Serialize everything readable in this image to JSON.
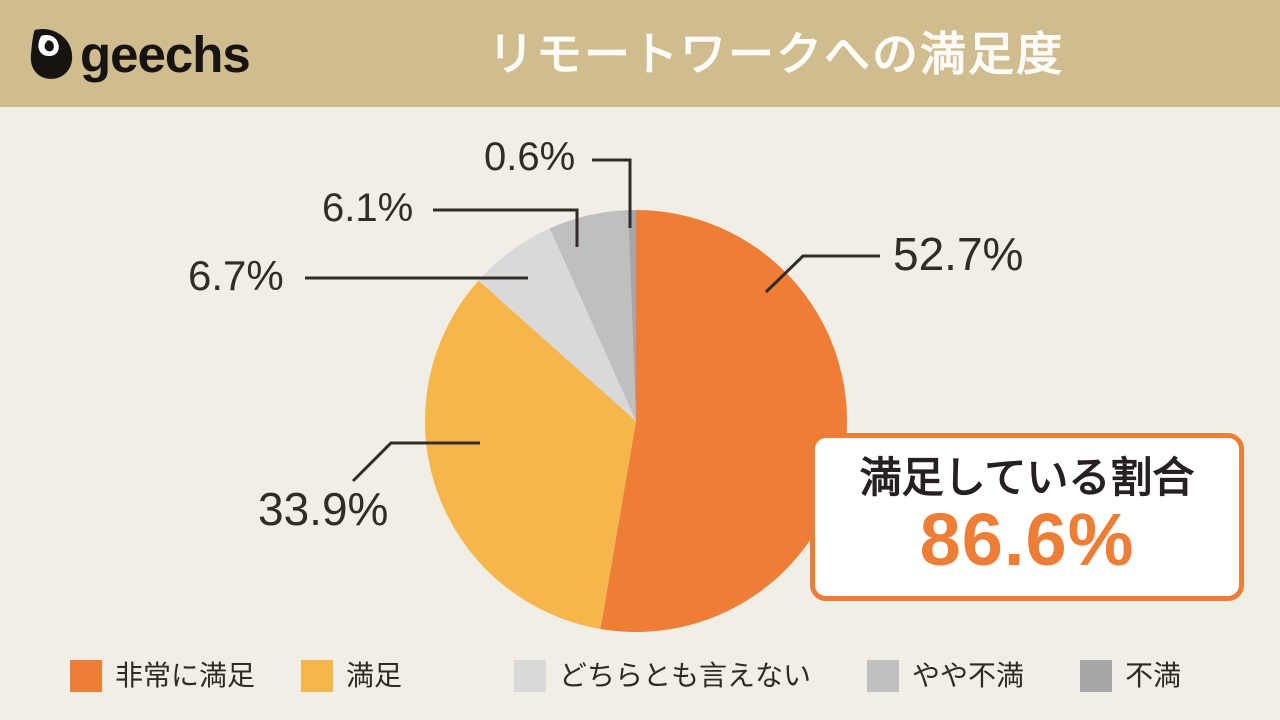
{
  "header": {
    "logo_text": "geechs",
    "title": "リモートワークへの満足度",
    "bg_color": "#CFBD8F",
    "title_color": "#FDFCF8"
  },
  "chart_data": {
    "type": "pie",
    "title": "リモートワークへの満足度",
    "start_angle_deg": 0,
    "direction": "clockwise",
    "legend_position": "bottom",
    "slices": [
      {
        "name": "非常に満足",
        "value_pct": 52.7,
        "label": "52.7%",
        "color": "#EE7E36"
      },
      {
        "name": "満足",
        "value_pct": 33.9,
        "label": "33.9%",
        "color": "#F5B74C"
      },
      {
        "name": "どちらとも言えない",
        "value_pct": 6.7,
        "label": "6.7%",
        "color": "#D9D9D9"
      },
      {
        "name": "やや不満",
        "value_pct": 6.1,
        "label": "6.1%",
        "color": "#BFBFBF"
      },
      {
        "name": "不満",
        "value_pct": 0.6,
        "label": "0.6%",
        "color": "#A6A6A6"
      }
    ],
    "callout": {
      "label": "満足している割合",
      "value": "86.6%"
    }
  },
  "colors": {
    "background": "#F1EEE6",
    "leader_line": "#332B27",
    "label_text": "#332B27",
    "accent_orange": "#EE7E36"
  }
}
